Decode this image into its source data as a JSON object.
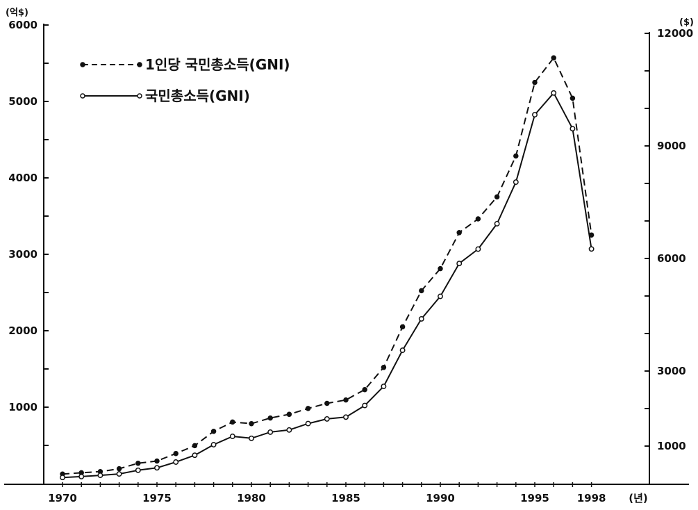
{
  "chart_data": {
    "type": "line",
    "left_axis": {
      "unit": "(억$)",
      "ylim": [
        0,
        6000
      ],
      "ticks": [
        "1000",
        "2000",
        "3000",
        "4000",
        "5000",
        "6000"
      ]
    },
    "right_axis": {
      "unit": "($)",
      "ylim": [
        0,
        12000
      ],
      "ticks": [
        "1000",
        "3000",
        "6000",
        "9000",
        "12000"
      ]
    },
    "x_axis": {
      "unit": "(년)",
      "ticks": [
        "1970",
        "1975",
        "1980",
        "1985",
        "1990",
        "1995",
        "1998"
      ]
    },
    "x": [
      1970,
      1971,
      1972,
      1973,
      1974,
      1975,
      1976,
      1977,
      1978,
      1979,
      1980,
      1981,
      1982,
      1983,
      1984,
      1985,
      1986,
      1987,
      1988,
      1989,
      1990,
      1991,
      1992,
      1993,
      1994,
      1995,
      1996,
      1997,
      1998
    ],
    "series": [
      {
        "name": "1인당 국민총소득(GNI)",
        "axis": "right",
        "style": "dashed",
        "marker": "filled",
        "values": [
          254,
          289,
          319,
          396,
          542,
          602,
          802,
          1011,
          1392,
          1640,
          1598,
          1749,
          1847,
          2001,
          2139,
          2229,
          2505,
          3097,
          4178,
          5141,
          5730,
          6689,
          7055,
          7640,
          8732,
          10692,
          11346,
          10270,
          6626
        ]
      },
      {
        "name": "국민총소득(GNI)",
        "axis": "left",
        "style": "solid",
        "marker": "hollow",
        "values": [
          80,
          92,
          108,
          126,
          175,
          206,
          282,
          371,
          509,
          618,
          593,
          674,
          702,
          785,
          846,
          870,
          1022,
          1272,
          1745,
          2155,
          2450,
          2880,
          3068,
          3400,
          3945,
          4826,
          5111,
          4644,
          3070
        ]
      }
    ]
  }
}
